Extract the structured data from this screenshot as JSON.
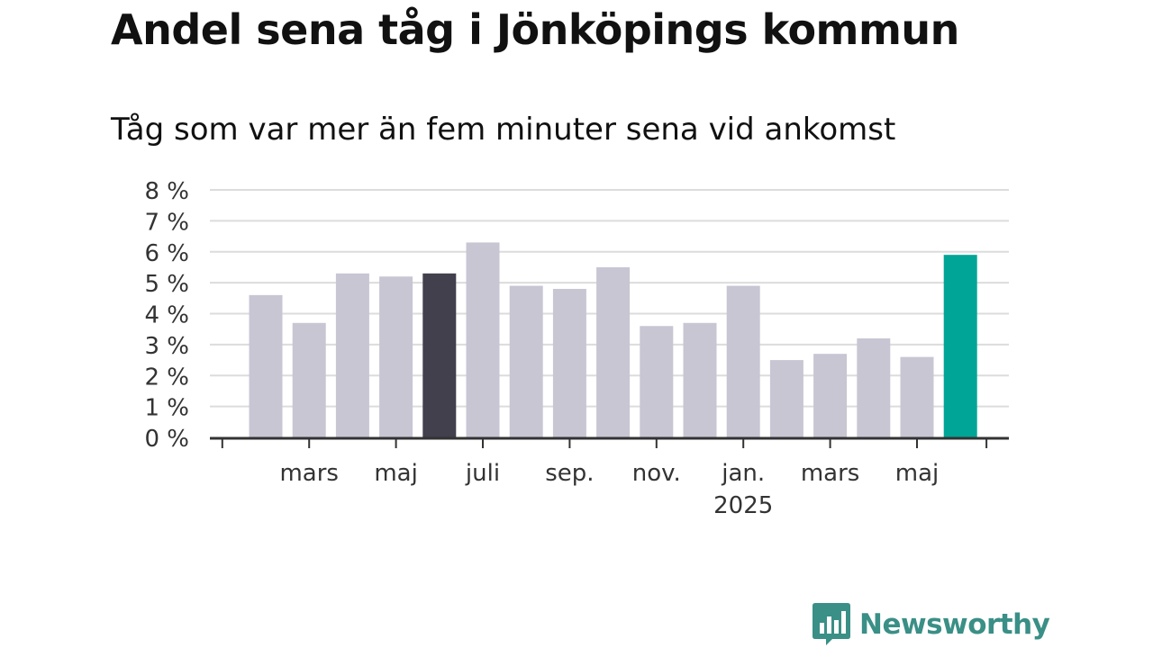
{
  "title": "Andel sena tåg i Jönköpings kommun",
  "subtitle": "Tåg som var mer än fem minuter sena vid ankomst",
  "brand": {
    "name": "Newsworthy",
    "icon": "newsworthy-logo-icon"
  },
  "colors": {
    "bar": "#c8c6d3",
    "highlight_prior": "#42404d",
    "highlight_latest": "#00a597",
    "grid": "#dcdcdc",
    "axis": "#333333",
    "text": "#333333",
    "brand": "#3a8f86"
  },
  "chart_data": {
    "type": "bar",
    "ylabel": "",
    "xlabel": "",
    "ylim": [
      0,
      8
    ],
    "y_ticks": [
      0,
      1,
      2,
      3,
      4,
      5,
      6,
      7,
      8
    ],
    "y_tick_labels": [
      "0 %",
      "1 %",
      "2 %",
      "3 %",
      "4 %",
      "5 %",
      "6 %",
      "7 %",
      "8 %"
    ],
    "grid": true,
    "x": [
      "2024-02",
      "2024-03",
      "2024-04",
      "2024-05",
      "2024-06",
      "2024-07",
      "2024-08",
      "2024-09",
      "2024-10",
      "2024-11",
      "2024-12",
      "2025-01",
      "2025-02",
      "2025-03",
      "2025-04",
      "2025-05",
      "2025-06"
    ],
    "values": [
      4.6,
      3.7,
      5.3,
      5.2,
      5.3,
      6.3,
      4.9,
      4.8,
      5.5,
      3.6,
      3.7,
      4.9,
      2.5,
      2.7,
      3.2,
      2.6,
      5.9
    ],
    "highlight": {
      "2024-06": "highlight_prior",
      "2025-06": "highlight_latest"
    },
    "x_tick_labels": [
      {
        "x": "2024-03",
        "label": "mars",
        "sublabel": ""
      },
      {
        "x": "2024-05",
        "label": "maj",
        "sublabel": ""
      },
      {
        "x": "2024-07",
        "label": "juli",
        "sublabel": ""
      },
      {
        "x": "2024-09",
        "label": "sep.",
        "sublabel": ""
      },
      {
        "x": "2024-11",
        "label": "nov.",
        "sublabel": ""
      },
      {
        "x": "2025-01",
        "label": "jan.",
        "sublabel": "2025"
      },
      {
        "x": "2025-03",
        "label": "mars",
        "sublabel": ""
      },
      {
        "x": "2025-05",
        "label": "maj",
        "sublabel": ""
      }
    ]
  }
}
